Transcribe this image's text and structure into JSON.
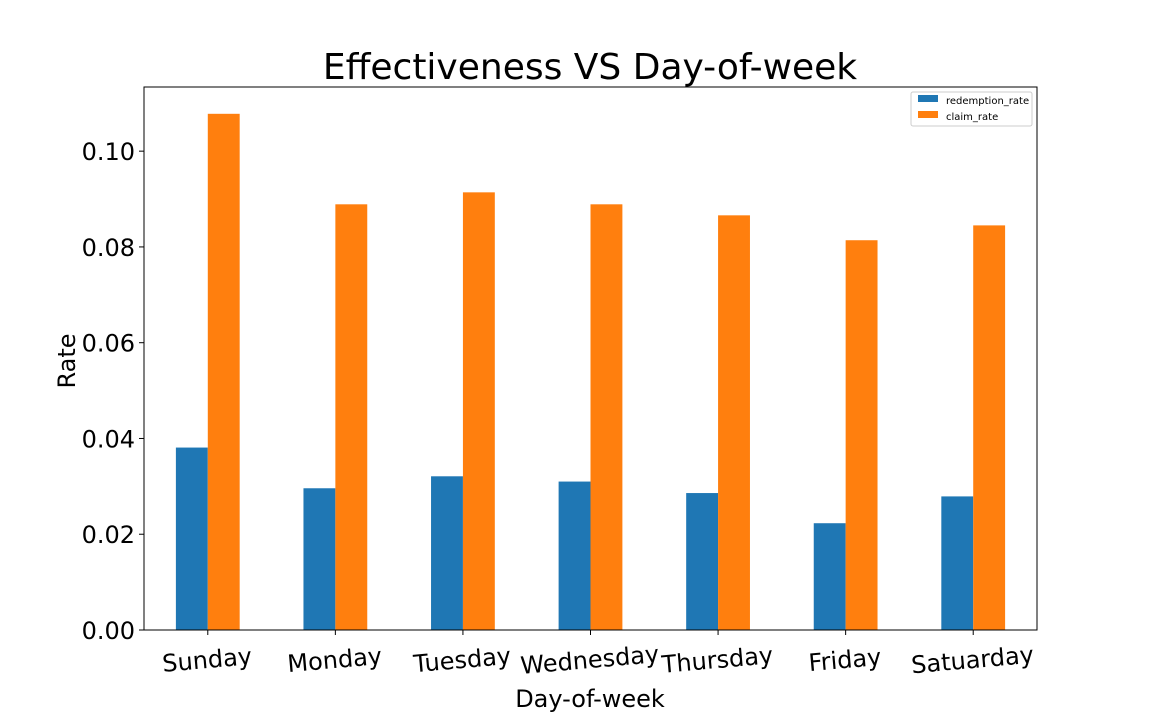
{
  "chart_data": {
    "type": "bar",
    "title": "Effectiveness VS Day-of-week",
    "xlabel": "Day-of-week",
    "ylabel": "Rate",
    "categories": [
      "Sunday",
      "Monday",
      "Tuesday",
      "Wednesday",
      "Thursday",
      "Friday",
      "Satuarday"
    ],
    "series": [
      {
        "name": "redemption_rate",
        "color": "#1f77b4",
        "values": [
          0.0381,
          0.0296,
          0.0321,
          0.031,
          0.0286,
          0.0223,
          0.0279
        ]
      },
      {
        "name": "claim_rate",
        "color": "#ff7f0e",
        "values": [
          0.1078,
          0.0889,
          0.0914,
          0.0889,
          0.0866,
          0.0814,
          0.0845
        ]
      }
    ],
    "ylim": [
      0,
      0.1134
    ],
    "yticks": [
      "0.00",
      "0.02",
      "0.04",
      "0.06",
      "0.08",
      "0.10"
    ],
    "ytick_values": [
      0,
      0.02,
      0.04,
      0.06,
      0.08,
      0.1
    ],
    "grid": false,
    "legend_position": "top-right"
  }
}
